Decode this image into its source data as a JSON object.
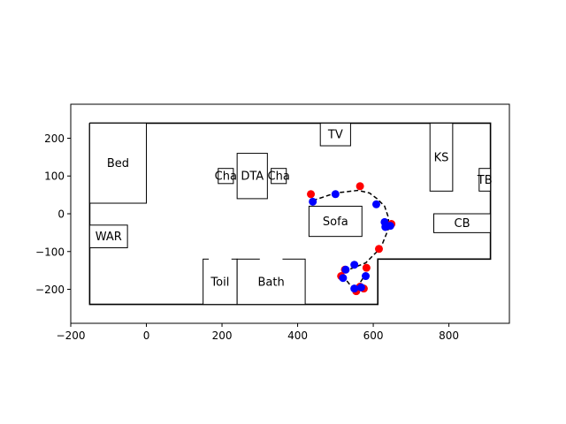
{
  "chart_data": {
    "type": "scatter",
    "title": "",
    "xlabel": "",
    "ylabel": "",
    "xlim": [
      -200,
      960
    ],
    "ylim": [
      -290,
      290
    ],
    "grid": false,
    "x_ticks": [
      -200,
      0,
      200,
      400,
      600,
      800
    ],
    "y_ticks": [
      -200,
      -100,
      0,
      100,
      200
    ],
    "x_tick_labels": [
      "−200",
      "0",
      "200",
      "400",
      "600",
      "800"
    ],
    "y_tick_labels": [
      "−200",
      "−100",
      "0",
      "100",
      "200"
    ],
    "walls": [
      [
        [
          -150,
          240
        ],
        [
          910,
          240
        ],
        [
          910,
          -120
        ],
        [
          612,
          -120
        ],
        [
          612,
          -240
        ],
        [
          -150,
          -240
        ],
        [
          -150,
          240
        ]
      ]
    ],
    "furniture": [
      {
        "label": "Bed",
        "x0": -150,
        "y0": 28,
        "x1": 0,
        "y1": 240
      },
      {
        "label": "WAR",
        "x0": -150,
        "y0": -90,
        "x1": -50,
        "y1": -30
      },
      {
        "label": "Cha",
        "x0": 190,
        "y0": 80,
        "x1": 230,
        "y1": 120
      },
      {
        "label": "DTA",
        "x0": 240,
        "y0": 40,
        "x1": 320,
        "y1": 160
      },
      {
        "label": "Cha",
        "x0": 330,
        "y0": 80,
        "x1": 370,
        "y1": 120
      },
      {
        "label": "TV",
        "x0": 460,
        "y0": 180,
        "x1": 540,
        "y1": 240
      },
      {
        "label": "KS",
        "x0": 750,
        "y0": 60,
        "x1": 810,
        "y1": 240
      },
      {
        "label": "TB",
        "x0": 880,
        "y0": 60,
        "x1": 910,
        "y1": 120
      },
      {
        "label": "Sofa",
        "x0": 430,
        "y0": -60,
        "x1": 570,
        "y1": 20
      },
      {
        "label": "CB",
        "x0": 760,
        "y0": -50,
        "x1": 910,
        "y1": 0
      },
      {
        "label": "Toil",
        "x0": 150,
        "y0": -240,
        "x1": 240,
        "y1": -120
      },
      {
        "label": "Bath",
        "x0": 240,
        "y0": -240,
        "x1": 420,
        "y1": -120
      }
    ],
    "door_gaps": [
      [
        165,
        225
      ],
      [
        300,
        360
      ]
    ],
    "path": {
      "style": "dashed",
      "color": "#000000",
      "x": [
        440,
        500,
        560,
        590,
        610,
        630,
        640,
        640,
        620,
        580,
        555,
        530,
        520,
        540,
        555,
        560,
        580
      ],
      "y": [
        35,
        55,
        62,
        55,
        40,
        20,
        -10,
        -40,
        -90,
        -130,
        -140,
        -150,
        -165,
        -190,
        -200,
        -190,
        -160
      ]
    },
    "series": [
      {
        "color": "#ff0000",
        "x": [
          435,
          565,
          648,
          615,
          582,
          525,
          515,
          555,
          575,
          565
        ],
        "y": [
          52,
          73,
          -27,
          -93,
          -143,
          -148,
          -165,
          -205,
          -198,
          -193
        ],
        "size": 6
      },
      {
        "color": "#0000ff",
        "x": [
          440,
          500,
          608,
          630,
          632,
          645,
          580,
          550,
          527,
          520,
          550,
          568
        ],
        "y": [
          32,
          52,
          25,
          -22,
          -35,
          -32,
          -165,
          -135,
          -148,
          -170,
          -198,
          -195
        ],
        "size": 6
      }
    ]
  }
}
